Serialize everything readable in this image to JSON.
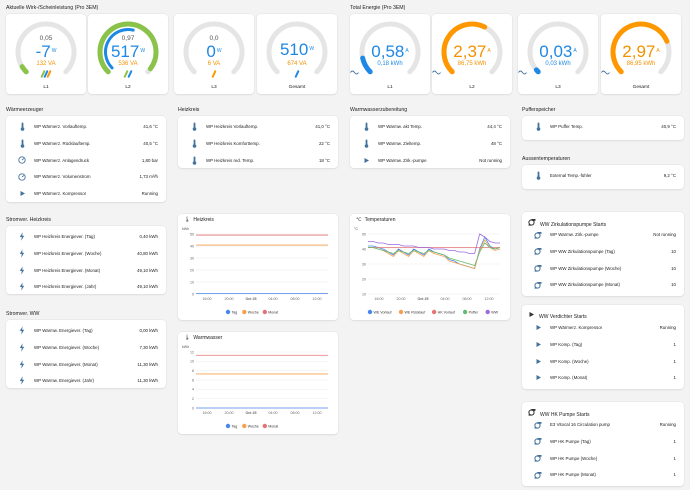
{
  "colors": {
    "blue": "#1e88e5",
    "green": "#8bc34a",
    "orange": "#ff9800",
    "gray": "#e5e5e5",
    "text_blue": "#1976d2",
    "text_orange": "#f39200",
    "red": "#e57373"
  },
  "sections": {
    "aktuelle": "Aktuelle Wirk-/Scheinleistung (Pro 3EM)",
    "total": "Total Energie (Pro 3EM)",
    "waermeerzeuger": "Wärmeerzeuger",
    "heizkreis": "Heizkreis",
    "warmwasser_bereitung": "Warmwasserzubereitung",
    "pufferspeicher": "Pufferspeicher",
    "aussentemp": "Aussentemperaturen",
    "stromver_heizkreis": "Stromver. Heizkreis",
    "stromver_ww": "Stromver. WW"
  },
  "power_gauges": [
    {
      "name": "L1",
      "small": "0,05",
      "main": "-7",
      "unit": "W",
      "sub": "132 VA",
      "arc": 0.05,
      "bars": [
        "#8bc34a",
        "#1e88e5",
        "#ff9800"
      ]
    },
    {
      "name": "L2",
      "small": "0,97",
      "main": "517",
      "unit": "W",
      "sub": "536 VA",
      "arc": 0.97,
      "bars": [
        "#8bc34a",
        "#1e88e5"
      ]
    },
    {
      "name": "L3",
      "small": "0,0",
      "main": "0",
      "unit": "W",
      "sub": "6 VA",
      "arc": 0.0,
      "bars": [
        "#ff9800"
      ]
    },
    {
      "name": "Gesamt",
      "small": "",
      "main": "510",
      "unit": "W",
      "sub": "674 VA",
      "arc": 0.0,
      "bars": [
        "#1e88e5"
      ]
    }
  ],
  "energy_gauges": [
    {
      "name": "L1",
      "main": "0,58",
      "unit": "A",
      "sub": "0,18 kWh",
      "arc": 0.12,
      "arcColor": "#1e88e5",
      "mainColor": "#1e88e5",
      "subColor": "#1e88e5",
      "icon": "~"
    },
    {
      "name": "L2",
      "main": "2,37",
      "unit": "A",
      "sub": "86,75 kWh",
      "arc": 0.6,
      "arcColor": "#ff9800",
      "mainColor": "#f39200",
      "subColor": "#f39200",
      "icon": "~"
    },
    {
      "name": "L3",
      "main": "0,03",
      "unit": "A",
      "sub": "0,03 kWh",
      "arc": 0.02,
      "arcColor": "#1e88e5",
      "mainColor": "#1e88e5",
      "subColor": "#1e88e5",
      "icon": "~"
    },
    {
      "name": "Gesamt",
      "main": "2,97",
      "unit": "A",
      "sub": "86,95 kWh",
      "arc": 0.75,
      "arcColor": "#ff9800",
      "mainColor": "#f39200",
      "subColor": "#f39200",
      "icon": "~"
    }
  ],
  "waermeerzeuger": [
    {
      "icon": "thermometer-icon",
      "label": "WP Wärmerz. Vorlauftemp.",
      "value": "41,6 °C"
    },
    {
      "icon": "thermometer-icon",
      "label": "WP Wärmerz. Rücklauftemp.",
      "value": "40,5 °C"
    },
    {
      "icon": "gauge-icon",
      "label": "WP Wärmerz. Anlagendruck",
      "value": "1,80 bar"
    },
    {
      "icon": "gauge-icon",
      "label": "WP Wärmerz. Volumenstrom",
      "value": "1,73 m³/h"
    },
    {
      "icon": "play-icon",
      "label": "WP Wärmerz. Kompressor",
      "value": "Running"
    }
  ],
  "heizkreis": [
    {
      "icon": "thermometer-icon",
      "label": "WP Heizkreis Vorlauftemp.",
      "value": "41,0 °C"
    },
    {
      "icon": "thermometer-icon",
      "label": "WP Heizkreis Komforttemp.",
      "value": "22 °C"
    },
    {
      "icon": "thermometer-icon",
      "label": "WP Heizkreis red. Temp.",
      "value": "18 °C"
    }
  ],
  "warmwasser": [
    {
      "icon": "thermometer-icon",
      "label": "WP Warmw. akt Temp.",
      "value": "44,4 °C"
    },
    {
      "icon": "thermometer-icon",
      "label": "WP Warmw. Zieltemp.",
      "value": "48 °C"
    },
    {
      "icon": "play-icon",
      "label": "WP Warmw. Zirk.-pumpe",
      "value": "Not running"
    }
  ],
  "puffer": [
    {
      "icon": "thermometer-icon",
      "label": "WP Puffer Temp.",
      "value": "40,9 °C"
    }
  ],
  "aussen": [
    {
      "icon": "thermometer-icon",
      "label": "External Temp.-fühler",
      "value": "9,2 °C"
    }
  ],
  "stromver_heizkreis": [
    {
      "icon": "flash-icon",
      "label": "WP Heizkreis Energiever. (Tag)",
      "value": "0,40 kWh"
    },
    {
      "icon": "flash-icon",
      "label": "WP Heizkreis Energiever. (Woche)",
      "value": "40,80 kWh"
    },
    {
      "icon": "flash-icon",
      "label": "WP Heizkreis Energiever. (Monat)",
      "value": "49,10 kWh"
    },
    {
      "icon": "flash-icon",
      "label": "WP Heizkreis Energiever. (Jahr)",
      "value": "49,10 kWh"
    }
  ],
  "stromver_ww": [
    {
      "icon": "flash-icon",
      "label": "WP Warmw. Energiever. (Tag)",
      "value": "0,00 kWh"
    },
    {
      "icon": "flash-icon",
      "label": "WP Warmw. Energiever. (Woche)",
      "value": "7,30 kWh"
    },
    {
      "icon": "flash-icon",
      "label": "WP Warmw. Energiever. (Monat)",
      "value": "11,30 kWh"
    },
    {
      "icon": "flash-icon",
      "label": "WP Warmw. Energiever. (Jahr)",
      "value": "11,30 kWh"
    }
  ],
  "ww_zirk": {
    "title": "WW Zirkulationspumpe Starts",
    "rows": [
      {
        "icon": "pump-icon",
        "label": "WP Warmw. Zirk.-pumpe",
        "value": "Not running"
      },
      {
        "icon": "pump-icon",
        "label": "WP WW Zirkulationspumpe (Tag)",
        "value": "10"
      },
      {
        "icon": "pump-icon",
        "label": "WP WW Zirkulationspumpe (Woche)",
        "value": "10"
      },
      {
        "icon": "pump-icon",
        "label": "WP WW Zirkulationspumpe (Monat)",
        "value": "10"
      }
    ]
  },
  "ww_verd": {
    "title": "WW Verdichter Starts",
    "rows": [
      {
        "icon": "play-icon",
        "label": "WP Wärmerz. Kompressor",
        "value": "Running"
      },
      {
        "icon": "play-icon",
        "label": "WP Komp. (Tag)",
        "value": "1"
      },
      {
        "icon": "play-icon",
        "label": "WP Komp. (Woche)",
        "value": "1"
      },
      {
        "icon": "play-icon",
        "label": "WP Komp. (Monat)",
        "value": "1"
      }
    ]
  },
  "ww_hk": {
    "title": "WW HK Pumpe Starts",
    "rows": [
      {
        "icon": "pump-icon",
        "label": "E3 Vitocal 16 Circulation pump",
        "value": "Running"
      },
      {
        "icon": "pump-icon",
        "label": "WP HK Pumpe (Tag)",
        "value": "1"
      },
      {
        "icon": "pump-icon",
        "label": "WP HK Pumpe (Woche)",
        "value": "1"
      },
      {
        "icon": "pump-icon",
        "label": "WP HK Pumpe (Monat)",
        "value": "1"
      }
    ]
  },
  "chart_data": [
    {
      "type": "line",
      "title": "Heizkreis",
      "ylabel": "kWh",
      "ylim": [
        0,
        50
      ],
      "yticks": [
        0,
        10,
        20,
        30,
        40,
        50
      ],
      "xticks": [
        "16:00",
        "20:00",
        "Oct 25",
        "04:00",
        "08:00",
        "12:00"
      ],
      "series": [
        {
          "name": "Tag",
          "color": "#4a86e8",
          "values": [
            0.4,
            0.4
          ]
        },
        {
          "name": "Woche",
          "color": "#f6a04d",
          "values": [
            40.8,
            40.8
          ]
        },
        {
          "name": "Monat",
          "color": "#e57373",
          "values": [
            49.1,
            49.1
          ]
        }
      ]
    },
    {
      "type": "line",
      "title": "Warmwasser",
      "ylabel": "kWh",
      "ylim": [
        0,
        12
      ],
      "yticks": [
        0,
        2,
        4,
        6,
        8,
        10,
        12
      ],
      "xticks": [
        "16:00",
        "20:00",
        "Oct 25",
        "04:00",
        "08:00",
        "12:00"
      ],
      "series": [
        {
          "name": "Tag",
          "color": "#4a86e8",
          "values": [
            0,
            0
          ]
        },
        {
          "name": "Woche",
          "color": "#f6a04d",
          "values": [
            7.3,
            7.3
          ]
        },
        {
          "name": "Monat",
          "color": "#e57373",
          "values": [
            11.3,
            11.3
          ]
        }
      ]
    },
    {
      "type": "line",
      "title": "Temperaturen",
      "ylabel": "°C",
      "ylim": [
        10,
        50
      ],
      "yticks": [
        10,
        20,
        30,
        40,
        50
      ],
      "xticks": [
        "16:00",
        "20:00",
        "Oct 25",
        "04:00",
        "08:00",
        "12:00"
      ],
      "series": [
        {
          "name": "WE Vorlauf",
          "color": "#4a86e8",
          "values": [
            42,
            42,
            41,
            40,
            38,
            36,
            40,
            38,
            36,
            40,
            38,
            36,
            40,
            38,
            37,
            36,
            33,
            32,
            30,
            29,
            28,
            27,
            40,
            48,
            42,
            40,
            41
          ]
        },
        {
          "name": "WE Rücklauf",
          "color": "#f6a04d",
          "values": [
            41,
            41,
            40,
            39,
            37,
            35,
            39,
            37,
            35,
            39,
            37,
            35,
            39,
            37,
            36,
            35,
            32,
            31,
            30,
            29,
            28,
            27,
            39,
            46,
            41,
            39,
            40
          ]
        },
        {
          "name": "HK Vorlauf",
          "color": "#e57373",
          "values": [
            41,
            41,
            41,
            41,
            41,
            41,
            41,
            41,
            41,
            41,
            41,
            41,
            41,
            41,
            41,
            41,
            41,
            41,
            41,
            41,
            41,
            41,
            41,
            41,
            41,
            41,
            41
          ]
        },
        {
          "name": "Puffer",
          "color": "#66bb6a",
          "values": [
            41,
            41,
            40,
            39,
            38,
            37,
            39,
            38,
            37,
            39,
            38,
            37,
            39,
            38,
            37,
            36,
            34,
            33,
            32,
            31,
            30,
            29,
            38,
            44,
            41,
            40,
            41
          ]
        },
        {
          "name": "WW",
          "color": "#9c6ade",
          "values": [
            45,
            45,
            44,
            44,
            43,
            43,
            43,
            42,
            42,
            42,
            41,
            41,
            41,
            40,
            40,
            40,
            39,
            39,
            38,
            38,
            37,
            37,
            50,
            48,
            45,
            44,
            44
          ]
        }
      ]
    }
  ],
  "charts_ui": {
    "heizkreis_title": "Heizkreis",
    "warmwasser_title": "Warmwasser",
    "temperaturen_title": "Temperaturen"
  }
}
